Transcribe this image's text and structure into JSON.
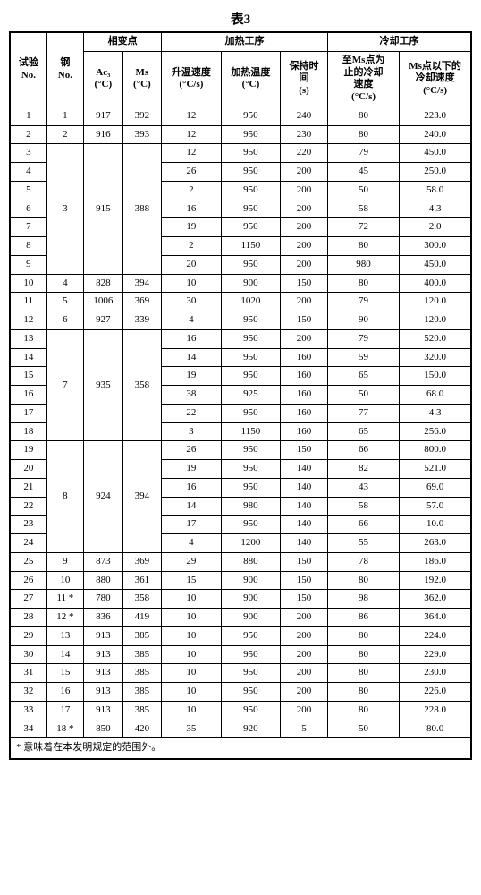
{
  "title": "表3",
  "headers": {
    "group_phase": "相变点",
    "group_heat": "加热工序",
    "group_cool": "冷却工序",
    "test_no": "试验\nNo.",
    "steel_no": "钢\nNo.",
    "ac3": "Ac₃\n(°C)",
    "ms": "Ms\n(°C)",
    "heat_rate": "升温速度\n(°C/s)",
    "heat_temp": "加热温度\n(°C)",
    "hold_time": "保持时\n间\n(s)",
    "cool_to_ms": "至Ms点为\n止的冷却\n速度\n(°C/s)",
    "cool_below_ms": "Ms点以下的\n冷却速度\n(°C/s)"
  },
  "footnote": "* 意味着在本发明规定的范围外。",
  "steel_groups": [
    {
      "steel": "1",
      "ac3": "917",
      "ms": "392",
      "rows": [
        {
          "t": "1",
          "hr": "12",
          "ht": "950",
          "hold": "240",
          "c1": "80",
          "c2": "223.0"
        }
      ]
    },
    {
      "steel": "2",
      "ac3": "916",
      "ms": "393",
      "rows": [
        {
          "t": "2",
          "hr": "12",
          "ht": "950",
          "hold": "230",
          "c1": "80",
          "c2": "240.0"
        }
      ]
    },
    {
      "steel": "3",
      "ac3": "915",
      "ms": "388",
      "rows": [
        {
          "t": "3",
          "hr": "12",
          "ht": "950",
          "hold": "220",
          "c1": "79",
          "c2": "450.0"
        },
        {
          "t": "4",
          "hr": "26",
          "ht": "950",
          "hold": "200",
          "c1": "45",
          "c2": "250.0"
        },
        {
          "t": "5",
          "hr": "2",
          "ht": "950",
          "hold": "200",
          "c1": "50",
          "c2": "58.0"
        },
        {
          "t": "6",
          "hr": "16",
          "ht": "950",
          "hold": "200",
          "c1": "58",
          "c2": "4.3"
        },
        {
          "t": "7",
          "hr": "19",
          "ht": "950",
          "hold": "200",
          "c1": "72",
          "c2": "2.0"
        },
        {
          "t": "8",
          "hr": "2",
          "ht": "1150",
          "hold": "200",
          "c1": "80",
          "c2": "300.0"
        },
        {
          "t": "9",
          "hr": "20",
          "ht": "950",
          "hold": "200",
          "c1": "980",
          "c2": "450.0"
        }
      ]
    },
    {
      "steel": "4",
      "ac3": "828",
      "ms": "394",
      "rows": [
        {
          "t": "10",
          "hr": "10",
          "ht": "900",
          "hold": "150",
          "c1": "80",
          "c2": "400.0"
        }
      ]
    },
    {
      "steel": "5",
      "ac3": "1006",
      "ms": "369",
      "rows": [
        {
          "t": "11",
          "hr": "30",
          "ht": "1020",
          "hold": "200",
          "c1": "79",
          "c2": "120.0"
        }
      ]
    },
    {
      "steel": "6",
      "ac3": "927",
      "ms": "339",
      "rows": [
        {
          "t": "12",
          "hr": "4",
          "ht": "950",
          "hold": "150",
          "c1": "90",
          "c2": "120.0"
        }
      ]
    },
    {
      "steel": "7",
      "ac3": "935",
      "ms": "358",
      "rows": [
        {
          "t": "13",
          "hr": "16",
          "ht": "950",
          "hold": "200",
          "c1": "79",
          "c2": "520.0"
        },
        {
          "t": "14",
          "hr": "14",
          "ht": "950",
          "hold": "160",
          "c1": "59",
          "c2": "320.0"
        },
        {
          "t": "15",
          "hr": "19",
          "ht": "950",
          "hold": "160",
          "c1": "65",
          "c2": "150.0"
        },
        {
          "t": "16",
          "hr": "38",
          "ht": "925",
          "hold": "160",
          "c1": "50",
          "c2": "68.0"
        },
        {
          "t": "17",
          "hr": "22",
          "ht": "950",
          "hold": "160",
          "c1": "77",
          "c2": "4.3"
        },
        {
          "t": "18",
          "hr": "3",
          "ht": "1150",
          "hold": "160",
          "c1": "65",
          "c2": "256.0"
        }
      ]
    },
    {
      "steel": "8",
      "ac3": "924",
      "ms": "394",
      "rows": [
        {
          "t": "19",
          "hr": "26",
          "ht": "950",
          "hold": "150",
          "c1": "66",
          "c2": "800.0"
        },
        {
          "t": "20",
          "hr": "19",
          "ht": "950",
          "hold": "140",
          "c1": "82",
          "c2": "521.0"
        },
        {
          "t": "21",
          "hr": "16",
          "ht": "950",
          "hold": "140",
          "c1": "43",
          "c2": "69.0"
        },
        {
          "t": "22",
          "hr": "14",
          "ht": "980",
          "hold": "140",
          "c1": "58",
          "c2": "57.0"
        },
        {
          "t": "23",
          "hr": "17",
          "ht": "950",
          "hold": "140",
          "c1": "66",
          "c2": "10.0"
        },
        {
          "t": "24",
          "hr": "4",
          "ht": "1200",
          "hold": "140",
          "c1": "55",
          "c2": "263.0"
        }
      ]
    },
    {
      "steel": "9",
      "ac3": "873",
      "ms": "369",
      "rows": [
        {
          "t": "25",
          "hr": "29",
          "ht": "880",
          "hold": "150",
          "c1": "78",
          "c2": "186.0"
        }
      ]
    },
    {
      "steel": "10",
      "ac3": "880",
      "ms": "361",
      "rows": [
        {
          "t": "26",
          "hr": "15",
          "ht": "900",
          "hold": "150",
          "c1": "80",
          "c2": "192.0"
        }
      ]
    },
    {
      "steel": "11 *",
      "ac3": "780",
      "ms": "358",
      "rows": [
        {
          "t": "27",
          "hr": "10",
          "ht": "900",
          "hold": "150",
          "c1": "98",
          "c2": "362.0"
        }
      ]
    },
    {
      "steel": "12 *",
      "ac3": "836",
      "ms": "419",
      "rows": [
        {
          "t": "28",
          "hr": "10",
          "ht": "900",
          "hold": "200",
          "c1": "86",
          "c2": "364.0"
        }
      ]
    },
    {
      "steel": "13",
      "ac3": "913",
      "ms": "385",
      "rows": [
        {
          "t": "29",
          "hr": "10",
          "ht": "950",
          "hold": "200",
          "c1": "80",
          "c2": "224.0"
        }
      ]
    },
    {
      "steel": "14",
      "ac3": "913",
      "ms": "385",
      "rows": [
        {
          "t": "30",
          "hr": "10",
          "ht": "950",
          "hold": "200",
          "c1": "80",
          "c2": "229.0"
        }
      ]
    },
    {
      "steel": "15",
      "ac3": "913",
      "ms": "385",
      "rows": [
        {
          "t": "31",
          "hr": "10",
          "ht": "950",
          "hold": "200",
          "c1": "80",
          "c2": "230.0"
        }
      ]
    },
    {
      "steel": "16",
      "ac3": "913",
      "ms": "385",
      "rows": [
        {
          "t": "32",
          "hr": "10",
          "ht": "950",
          "hold": "200",
          "c1": "80",
          "c2": "226.0"
        }
      ]
    },
    {
      "steel": "17",
      "ac3": "913",
      "ms": "385",
      "rows": [
        {
          "t": "33",
          "hr": "10",
          "ht": "950",
          "hold": "200",
          "c1": "80",
          "c2": "228.0"
        }
      ]
    },
    {
      "steel": "18 *",
      "ac3": "850",
      "ms": "420",
      "rows": [
        {
          "t": "34",
          "hr": "35",
          "ht": "920",
          "hold": "5",
          "c1": "50",
          "c2": "80.0"
        }
      ]
    }
  ],
  "colors": {
    "border": "#000000",
    "background": "#ffffff",
    "text": "#000000"
  }
}
